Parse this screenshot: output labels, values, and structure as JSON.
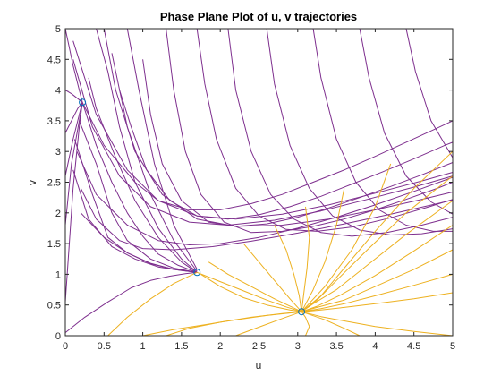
{
  "chart_data": {
    "type": "line",
    "title": "Phase Plane Plot of u, v trajectories",
    "xlabel": "u",
    "ylabel": "v",
    "xlim": [
      0,
      5
    ],
    "ylim": [
      0,
      5
    ],
    "xticks": [
      "0",
      "0.5",
      "1",
      "1.5",
      "2",
      "2.5",
      "3",
      "3.5",
      "4",
      "4.5",
      "5"
    ],
    "yticks": [
      "0",
      "0.5",
      "1",
      "1.5",
      "2",
      "2.5",
      "3",
      "3.5",
      "4",
      "4.5",
      "5"
    ],
    "grid": false,
    "legend": "none",
    "colors": {
      "purple": "#7E2F8E",
      "yellow": "#EDB120",
      "marker": "#0072BD",
      "axis": "#262626"
    },
    "equilibria": [
      {
        "u": 0.22,
        "v": 3.8
      },
      {
        "u": 1.7,
        "v": 1.03
      },
      {
        "u": 3.05,
        "v": 0.39
      }
    ],
    "series": [
      {
        "color": "purple",
        "x": [
          0.0,
          0.1,
          0.18,
          0.22
        ],
        "y": [
          5.0,
          4.4,
          4.0,
          3.8
        ]
      },
      {
        "color": "purple",
        "x": [
          0.0,
          0.08,
          0.16,
          0.22
        ],
        "y": [
          4.0,
          3.94,
          3.86,
          3.8
        ]
      },
      {
        "color": "purple",
        "x": [
          0.0,
          0.08,
          0.16,
          0.22
        ],
        "y": [
          3.3,
          3.5,
          3.7,
          3.8
        ]
      },
      {
        "color": "purple",
        "x": [
          0.0,
          0.1,
          0.18,
          0.22
        ],
        "y": [
          2.6,
          3.2,
          3.6,
          3.8
        ]
      },
      {
        "color": "purple",
        "x": [
          0.0,
          0.08,
          0.18,
          0.22
        ],
        "y": [
          1.8,
          2.8,
          3.5,
          3.8
        ]
      },
      {
        "color": "purple",
        "x": [
          0.0,
          0.1,
          0.18,
          0.22
        ],
        "y": [
          0.55,
          2.4,
          3.4,
          3.8
        ]
      },
      {
        "color": "purple",
        "x": [
          0.0,
          0.25,
          0.55,
          0.85,
          1.1,
          1.35,
          1.55,
          1.7
        ],
        "y": [
          0.05,
          0.3,
          0.55,
          0.78,
          0.9,
          0.97,
          1.01,
          1.03
        ]
      },
      {
        "color": "purple",
        "x": [
          0.22,
          0.4,
          0.6,
          0.8,
          1.0,
          1.2,
          1.45,
          1.7
        ],
        "y": [
          3.8,
          3.1,
          2.5,
          2.0,
          1.62,
          1.33,
          1.15,
          1.03
        ]
      },
      {
        "color": "purple",
        "x": [
          0.3,
          0.4,
          0.65,
          0.9,
          1.2,
          1.5,
          1.7
        ],
        "y": [
          4.2,
          3.7,
          2.9,
          2.2,
          1.6,
          1.2,
          1.03
        ]
      },
      {
        "color": "purple",
        "x": [
          0.4,
          0.55,
          0.7,
          0.9,
          1.2,
          1.5,
          1.7
        ],
        "y": [
          5.0,
          4.3,
          3.4,
          2.5,
          1.75,
          1.25,
          1.03
        ]
      },
      {
        "color": "purple",
        "x": [
          0.18,
          0.4,
          0.6,
          0.8,
          1.1,
          1.4,
          1.7
        ],
        "y": [
          3.5,
          2.8,
          2.0,
          1.55,
          1.25,
          1.1,
          1.03
        ]
      },
      {
        "color": "purple",
        "x": [
          0.12,
          0.35,
          0.55,
          0.8,
          1.1,
          1.4,
          1.7
        ],
        "y": [
          3.2,
          2.3,
          1.6,
          1.35,
          1.17,
          1.08,
          1.03
        ]
      },
      {
        "color": "purple",
        "x": [
          0.1,
          0.3,
          0.6,
          0.9,
          1.2,
          1.5,
          1.7
        ],
        "y": [
          2.7,
          1.9,
          1.45,
          1.25,
          1.12,
          1.06,
          1.03
        ]
      },
      {
        "color": "purple",
        "x": [
          0.2,
          0.5,
          0.8,
          1.1,
          1.4,
          1.7
        ],
        "y": [
          2.0,
          1.6,
          1.35,
          1.18,
          1.08,
          1.03
        ]
      },
      {
        "color": "purple",
        "x": [
          0.6,
          0.8,
          1.1,
          1.4,
          1.7
        ],
        "y": [
          4.6,
          3.4,
          2.3,
          1.55,
          1.05
        ]
      },
      {
        "color": "purple",
        "x": [
          0.8,
          0.95,
          1.15,
          1.4,
          1.7
        ],
        "y": [
          5.0,
          4.0,
          2.8,
          1.8,
          1.08
        ]
      },
      {
        "color": "purple",
        "x": [
          0.22,
          0.5,
          0.9,
          1.2,
          1.6,
          2.0,
          2.4,
          2.8,
          3.2,
          3.6,
          4.0,
          4.4,
          4.8,
          5.0
        ],
        "y": [
          3.8,
          3.1,
          2.5,
          2.2,
          2.05,
          2.05,
          2.15,
          2.3,
          2.5,
          2.7,
          2.92,
          3.15,
          3.38,
          3.5
        ]
      },
      {
        "color": "purple",
        "x": [
          0.7,
          0.85,
          1.05,
          1.35,
          1.7,
          2.1,
          2.5,
          2.9,
          3.3,
          3.7,
          4.1,
          4.5,
          4.9,
          5.0
        ],
        "y": [
          4.0,
          3.4,
          2.7,
          2.2,
          1.95,
          1.9,
          1.97,
          2.1,
          2.27,
          2.47,
          2.67,
          2.88,
          3.1,
          3.15
        ]
      },
      {
        "color": "purple",
        "x": [
          1.0,
          1.1,
          1.25,
          1.5,
          1.85,
          2.2,
          2.6,
          3.0,
          3.4,
          3.8,
          4.2,
          4.6,
          5.0
        ],
        "y": [
          4.5,
          3.6,
          2.8,
          2.2,
          1.85,
          1.78,
          1.82,
          1.93,
          2.08,
          2.25,
          2.43,
          2.62,
          2.82
        ]
      },
      {
        "color": "purple",
        "x": [
          1.3,
          1.4,
          1.55,
          1.75,
          2.05,
          2.4,
          2.8,
          3.2,
          3.6,
          4.0,
          4.4,
          4.8,
          5.0
        ],
        "y": [
          5.0,
          4.0,
          3.0,
          2.3,
          1.85,
          1.68,
          1.7,
          1.78,
          1.9,
          2.05,
          2.22,
          2.4,
          2.5
        ]
      },
      {
        "color": "purple",
        "x": [
          0.15,
          0.4,
          0.8,
          1.2,
          1.6,
          2.0,
          2.5,
          3.0,
          3.5,
          4.0,
          4.5,
          5.0
        ],
        "y": [
          3.0,
          2.3,
          1.8,
          1.55,
          1.48,
          1.5,
          1.6,
          1.75,
          1.93,
          2.13,
          2.35,
          2.58
        ]
      },
      {
        "color": "purple",
        "x": [
          1.7,
          1.8,
          1.95,
          2.2,
          2.5,
          2.85,
          3.25,
          3.7,
          4.2,
          4.7,
          5.0
        ],
        "y": [
          5.0,
          4.1,
          3.2,
          2.4,
          1.95,
          1.73,
          1.7,
          1.77,
          1.92,
          2.1,
          2.22
        ]
      },
      {
        "color": "purple",
        "x": [
          2.1,
          2.2,
          2.4,
          2.65,
          2.95,
          3.3,
          3.7,
          4.15,
          4.6,
          5.0
        ],
        "y": [
          5.0,
          4.0,
          3.0,
          2.3,
          1.9,
          1.68,
          1.62,
          1.68,
          1.8,
          1.93
        ]
      },
      {
        "color": "purple",
        "x": [
          2.6,
          2.7,
          2.9,
          3.15,
          3.45,
          3.8,
          4.2,
          4.6,
          5.0
        ],
        "y": [
          5.0,
          4.1,
          3.1,
          2.4,
          1.95,
          1.72,
          1.64,
          1.66,
          1.74
        ]
      },
      {
        "color": "purple",
        "x": [
          3.2,
          3.3,
          3.5,
          3.75,
          4.05,
          4.4,
          4.75,
          5.0
        ],
        "y": [
          5.0,
          4.2,
          3.2,
          2.5,
          2.05,
          1.8,
          1.7,
          1.7
        ]
      },
      {
        "color": "purple",
        "x": [
          3.8,
          3.92,
          4.12,
          4.4,
          4.72,
          5.0
        ],
        "y": [
          5.0,
          4.2,
          3.3,
          2.6,
          2.18,
          1.98
        ]
      },
      {
        "color": "purple",
        "x": [
          4.4,
          4.52,
          4.72,
          5.0
        ],
        "y": [
          5.0,
          4.3,
          3.5,
          2.9
        ]
      },
      {
        "color": "purple",
        "x": [
          0.1,
          0.4,
          0.8,
          1.2,
          1.7,
          2.2,
          2.8,
          3.4,
          4.0,
          4.6,
          5.0
        ],
        "y": [
          4.8,
          3.6,
          2.7,
          2.2,
          1.95,
          1.9,
          1.98,
          2.13,
          2.32,
          2.52,
          2.66
        ]
      },
      {
        "color": "purple",
        "x": [
          0.1,
          0.35,
          0.7,
          1.1,
          1.6,
          2.1,
          2.7,
          3.3,
          3.9,
          4.5,
          5.0
        ],
        "y": [
          4.5,
          3.4,
          2.6,
          2.1,
          1.85,
          1.8,
          1.88,
          2.03,
          2.22,
          2.42,
          2.6
        ]
      },
      {
        "color": "purple",
        "x": [
          0.5,
          0.65,
          0.9,
          1.25,
          1.7,
          2.2,
          2.8,
          3.4,
          4.0,
          4.6,
          5.0
        ],
        "y": [
          5.0,
          4.0,
          3.0,
          2.3,
          1.9,
          1.78,
          1.8,
          1.9,
          2.05,
          2.22,
          2.34
        ]
      },
      {
        "color": "purple",
        "x": [
          0.2,
          0.4,
          0.7,
          1.0,
          1.4,
          1.9,
          2.4,
          3.0,
          3.6,
          4.2,
          4.8,
          5.0
        ],
        "y": [
          2.4,
          1.9,
          1.55,
          1.42,
          1.4,
          1.45,
          1.54,
          1.67,
          1.82,
          1.98,
          2.15,
          2.21
        ]
      },
      {
        "color": "yellow",
        "x": [
          0.55,
          0.8,
          1.1,
          1.4,
          1.7
        ],
        "y": [
          0.0,
          0.3,
          0.6,
          0.85,
          1.03
        ]
      },
      {
        "color": "yellow",
        "x": [
          1.7,
          2.0,
          2.3,
          2.6,
          2.85,
          3.05
        ],
        "y": [
          1.03,
          0.88,
          0.73,
          0.58,
          0.47,
          0.39
        ]
      },
      {
        "color": "yellow",
        "x": [
          5.0,
          4.5,
          4.0,
          3.6,
          3.3,
          3.05
        ],
        "y": [
          0.0,
          0.07,
          0.15,
          0.24,
          0.31,
          0.39
        ]
      },
      {
        "color": "yellow",
        "x": [
          1.3,
          1.6,
          2.0,
          2.4,
          2.8,
          3.05
        ],
        "y": [
          0.0,
          0.12,
          0.22,
          0.3,
          0.36,
          0.39
        ]
      },
      {
        "color": "yellow",
        "x": [
          2.2,
          2.5,
          2.8,
          3.05
        ],
        "y": [
          0.0,
          0.14,
          0.28,
          0.39
        ]
      },
      {
        "color": "yellow",
        "x": [
          3.1,
          3.15,
          3.1,
          3.05
        ],
        "y": [
          0.0,
          0.15,
          0.3,
          0.39
        ]
      },
      {
        "color": "yellow",
        "x": [
          3.8,
          3.6,
          3.35,
          3.05
        ],
        "y": [
          0.0,
          0.12,
          0.26,
          0.39
        ]
      },
      {
        "color": "yellow",
        "x": [
          5.0,
          4.5,
          4.0,
          3.6,
          3.3,
          3.05
        ],
        "y": [
          3.0,
          2.4,
          1.7,
          1.1,
          0.65,
          0.39
        ]
      },
      {
        "color": "yellow",
        "x": [
          5.0,
          4.4,
          3.9,
          3.5,
          3.25,
          3.05
        ],
        "y": [
          2.6,
          2.0,
          1.4,
          0.9,
          0.58,
          0.39
        ]
      },
      {
        "color": "yellow",
        "x": [
          5.0,
          4.4,
          3.9,
          3.5,
          3.2,
          3.05
        ],
        "y": [
          2.2,
          1.65,
          1.15,
          0.75,
          0.52,
          0.39
        ]
      },
      {
        "color": "yellow",
        "x": [
          5.0,
          4.5,
          4.0,
          3.55,
          3.25,
          3.05
        ],
        "y": [
          1.8,
          1.38,
          0.98,
          0.66,
          0.48,
          0.39
        ]
      },
      {
        "color": "yellow",
        "x": [
          5.0,
          4.5,
          4.0,
          3.6,
          3.25,
          3.05
        ],
        "y": [
          1.4,
          1.08,
          0.8,
          0.58,
          0.46,
          0.39
        ]
      },
      {
        "color": "yellow",
        "x": [
          5.0,
          4.5,
          4.0,
          3.6,
          3.3,
          3.05
        ],
        "y": [
          1.0,
          0.82,
          0.65,
          0.52,
          0.44,
          0.39
        ]
      },
      {
        "color": "yellow",
        "x": [
          5.0,
          4.5,
          4.0,
          3.6,
          3.3,
          3.05
        ],
        "y": [
          0.7,
          0.6,
          0.52,
          0.46,
          0.42,
          0.39
        ]
      },
      {
        "color": "yellow",
        "x": [
          1.85,
          2.1,
          2.4,
          2.7,
          2.95,
          3.05
        ],
        "y": [
          1.2,
          1.0,
          0.8,
          0.6,
          0.45,
          0.39
        ]
      },
      {
        "color": "yellow",
        "x": [
          2.3,
          2.5,
          2.7,
          2.9,
          3.05
        ],
        "y": [
          1.5,
          1.2,
          0.9,
          0.6,
          0.39
        ]
      },
      {
        "color": "yellow",
        "x": [
          2.7,
          2.85,
          2.95,
          3.02,
          3.05
        ],
        "y": [
          1.8,
          1.4,
          1.0,
          0.65,
          0.39
        ]
      },
      {
        "color": "yellow",
        "x": [
          3.1,
          3.15,
          3.12,
          3.08,
          3.05
        ],
        "y": [
          2.1,
          1.6,
          1.1,
          0.7,
          0.39
        ]
      },
      {
        "color": "yellow",
        "x": [
          3.6,
          3.5,
          3.35,
          3.2,
          3.05
        ],
        "y": [
          2.4,
          1.8,
          1.2,
          0.75,
          0.39
        ]
      },
      {
        "color": "yellow",
        "x": [
          4.2,
          4.0,
          3.7,
          3.35,
          3.05
        ],
        "y": [
          2.8,
          2.1,
          1.4,
          0.8,
          0.39
        ]
      },
      {
        "color": "yellow",
        "x": [
          1.75,
          2.0,
          2.3,
          2.6,
          2.9,
          3.05
        ],
        "y": [
          1.0,
          0.8,
          0.62,
          0.5,
          0.42,
          0.39
        ]
      },
      {
        "color": "yellow",
        "x": [
          1.0,
          1.4,
          1.8,
          2.2,
          2.6,
          2.9,
          3.05
        ],
        "y": [
          0.0,
          0.1,
          0.18,
          0.26,
          0.33,
          0.37,
          0.39
        ]
      }
    ]
  }
}
